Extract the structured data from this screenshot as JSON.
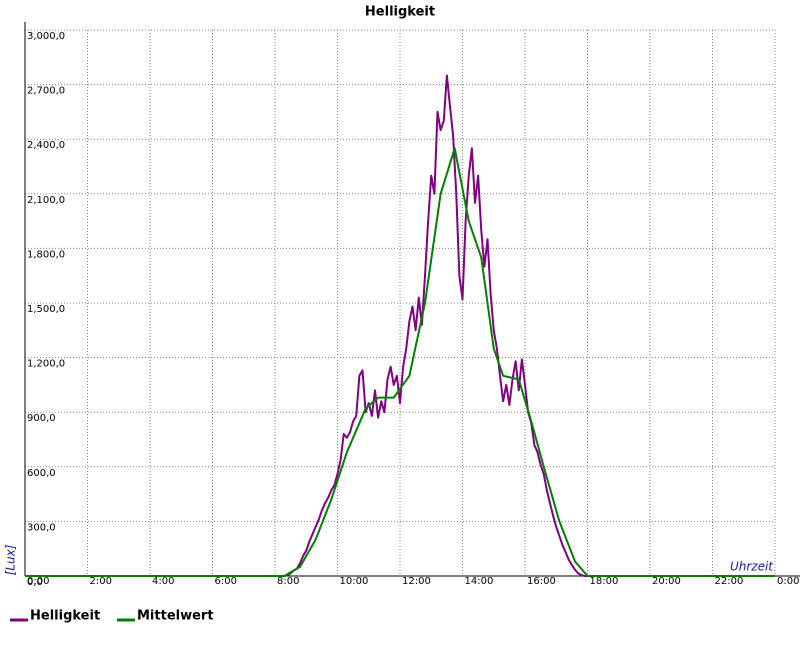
{
  "chart_data": {
    "type": "line",
    "title": "Helligkeit",
    "x_label": "Uhrzeit",
    "y_label": "[Lux]",
    "xlim": [
      0,
      24
    ],
    "ylim": [
      0,
      3000
    ],
    "grid": true,
    "xticks": [
      {
        "value": 0,
        "label": "0:00"
      },
      {
        "value": 2,
        "label": "2:00"
      },
      {
        "value": 4,
        "label": "4:00"
      },
      {
        "value": 6,
        "label": "6:00"
      },
      {
        "value": 8,
        "label": "8:00"
      },
      {
        "value": 10,
        "label": "10:00"
      },
      {
        "value": 12,
        "label": "12:00"
      },
      {
        "value": 14,
        "label": "14:00"
      },
      {
        "value": 16,
        "label": "16:00"
      },
      {
        "value": 18,
        "label": "18:00"
      },
      {
        "value": 20,
        "label": "20:00"
      },
      {
        "value": 22,
        "label": "22:00"
      },
      {
        "value": 24,
        "label": "0:00"
      }
    ],
    "yticks": [
      {
        "value": 0,
        "label": "0,0"
      },
      {
        "value": 300,
        "label": "300,0"
      },
      {
        "value": 600,
        "label": "600,0"
      },
      {
        "value": 900,
        "label": "900,0"
      },
      {
        "value": 1200,
        "label": "1,200,0"
      },
      {
        "value": 1500,
        "label": "1,500,0"
      },
      {
        "value": 1800,
        "label": "1,800,0"
      },
      {
        "value": 2100,
        "label": "2,100,0"
      },
      {
        "value": 2400,
        "label": "2,400,0"
      },
      {
        "value": 2700,
        "label": "2,700,0"
      },
      {
        "value": 3000,
        "label": "3,000,0"
      }
    ],
    "series": [
      {
        "name": "Helligkeit",
        "color": "#800080",
        "x": [
          0,
          8.3,
          8.4,
          8.5,
          8.6,
          8.7,
          8.8,
          8.9,
          9.0,
          9.1,
          9.2,
          9.3,
          9.4,
          9.5,
          9.6,
          9.7,
          9.8,
          9.9,
          10.0,
          10.1,
          10.2,
          10.3,
          10.4,
          10.5,
          10.6,
          10.7,
          10.8,
          10.9,
          11.0,
          11.1,
          11.2,
          11.3,
          11.4,
          11.5,
          11.6,
          11.7,
          11.8,
          11.9,
          12.0,
          12.1,
          12.2,
          12.3,
          12.4,
          12.5,
          12.6,
          12.7,
          12.8,
          12.9,
          13.0,
          13.1,
          13.2,
          13.3,
          13.4,
          13.5,
          13.6,
          13.7,
          13.8,
          13.9,
          14.0,
          14.1,
          14.2,
          14.3,
          14.4,
          14.5,
          14.6,
          14.7,
          14.8,
          14.9,
          15.0,
          15.1,
          15.2,
          15.3,
          15.4,
          15.5,
          15.6,
          15.7,
          15.8,
          15.9,
          16.0,
          16.1,
          16.2,
          16.3,
          16.4,
          16.5,
          16.6,
          16.7,
          16.8,
          16.9,
          17.0,
          17.1,
          17.2,
          17.3,
          17.4,
          17.5,
          17.6,
          17.7,
          17.8,
          17.9,
          18.0,
          24
        ],
        "values": [
          0,
          0,
          5,
          15,
          30,
          40,
          70,
          110,
          140,
          190,
          230,
          270,
          310,
          360,
          400,
          430,
          470,
          500,
          560,
          640,
          780,
          760,
          790,
          850,
          880,
          1100,
          1130,
          900,
          950,
          880,
          1020,
          870,
          960,
          900,
          1080,
          1150,
          1050,
          1100,
          950,
          1150,
          1250,
          1400,
          1480,
          1350,
          1530,
          1380,
          1650,
          1950,
          2200,
          2100,
          2550,
          2450,
          2500,
          2750,
          2580,
          2420,
          2100,
          1650,
          1520,
          1950,
          2200,
          2350,
          2050,
          2200,
          1900,
          1700,
          1850,
          1550,
          1350,
          1250,
          1100,
          960,
          1050,
          940,
          1080,
          1180,
          1020,
          1190,
          1050,
          900,
          840,
          720,
          680,
          610,
          560,
          470,
          400,
          330,
          270,
          220,
          170,
          130,
          90,
          60,
          35,
          15,
          5,
          0,
          0,
          0
        ]
      },
      {
        "name": "Mittelwert",
        "color": "#008000",
        "x": [
          0,
          8.3,
          8.8,
          9.3,
          9.8,
          10.3,
          10.9,
          11.3,
          11.8,
          12.3,
          12.8,
          13.3,
          13.75,
          14.2,
          14.6,
          15.0,
          15.3,
          15.8,
          16.2,
          16.6,
          17.1,
          17.6,
          18.0,
          24
        ],
        "values": [
          0,
          0,
          50,
          200,
          420,
          680,
          920,
          980,
          980,
          1100,
          1500,
          2100,
          2350,
          1950,
          1750,
          1250,
          1100,
          1080,
          850,
          600,
          300,
          80,
          0,
          0
        ]
      }
    ]
  }
}
